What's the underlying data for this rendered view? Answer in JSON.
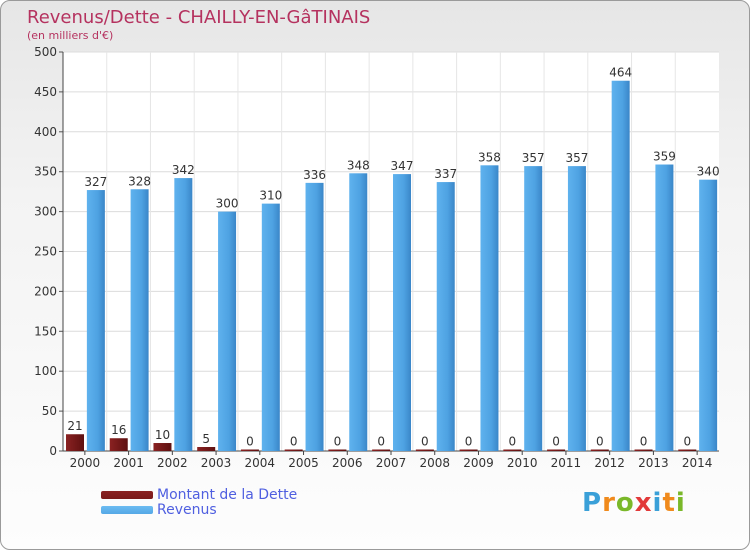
{
  "chart_data": {
    "type": "bar",
    "title": "Revenus/Dette - CHAILLY-EN-GâTINAIS",
    "subtitle": "(en milliers d'€)",
    "categories": [
      "2000",
      "2001",
      "2002",
      "2003",
      "2004",
      "2005",
      "2006",
      "2007",
      "2008",
      "2009",
      "2010",
      "2011",
      "2012",
      "2013",
      "2014"
    ],
    "series": [
      {
        "name": "Montant de la Dette",
        "color": "#7a1a1a",
        "values": [
          21,
          16,
          10,
          5,
          0,
          0,
          0,
          0,
          0,
          0,
          0,
          0,
          0,
          0,
          0
        ]
      },
      {
        "name": "Revenus",
        "color": "#55a8e6",
        "values": [
          327,
          328,
          342,
          300,
          310,
          336,
          348,
          347,
          337,
          358,
          357,
          357,
          464,
          359,
          340
        ]
      }
    ],
    "ylim": [
      0,
      500
    ],
    "yticks": [
      0,
      50,
      100,
      150,
      200,
      250,
      300,
      350,
      400,
      450,
      500
    ],
    "grid": true,
    "legend_position": "bottom-left"
  },
  "brand": {
    "letters": [
      "P",
      "r",
      "o",
      "x",
      "i",
      "t",
      "i"
    ],
    "colors": [
      "#3aa0d8",
      "#f08a1c",
      "#7ab829",
      "#e23a3a",
      "#3aa0d8",
      "#f08a1c",
      "#7ab829"
    ]
  }
}
